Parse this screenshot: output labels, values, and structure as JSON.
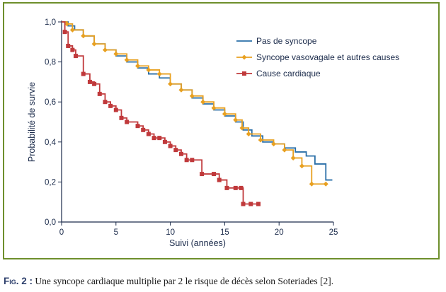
{
  "chart_data": {
    "type": "line",
    "step": true,
    "xlabel": "Suivi (années)",
    "ylabel": "Probabilité de survie",
    "xlim": [
      0,
      25
    ],
    "ylim": [
      0,
      1.0
    ],
    "x_ticks": [
      "0",
      "5",
      "10",
      "15",
      "20",
      "25"
    ],
    "y_ticks": [
      "0,0",
      "0,2",
      "0,4",
      "0,6",
      "0,8",
      "1,0"
    ],
    "grid": false,
    "legend_position": "top-right",
    "series": [
      {
        "name": "Pas de syncope",
        "color": "#2a6fa8",
        "marker": "none",
        "points": [
          [
            0,
            1.0
          ],
          [
            0.6,
            0.98
          ],
          [
            1.2,
            0.96
          ],
          [
            2,
            0.93
          ],
          [
            3,
            0.89
          ],
          [
            4,
            0.86
          ],
          [
            5,
            0.83
          ],
          [
            6,
            0.8
          ],
          [
            7,
            0.77
          ],
          [
            8,
            0.74
          ],
          [
            9,
            0.72
          ],
          [
            10,
            0.69
          ],
          [
            11,
            0.66
          ],
          [
            12,
            0.62
          ],
          [
            13,
            0.59
          ],
          [
            14,
            0.56
          ],
          [
            15,
            0.53
          ],
          [
            16,
            0.5
          ],
          [
            16.7,
            0.46
          ],
          [
            17.5,
            0.43
          ],
          [
            18.5,
            0.4
          ],
          [
            19.5,
            0.39
          ],
          [
            20.5,
            0.37
          ],
          [
            21.5,
            0.35
          ],
          [
            22.5,
            0.33
          ],
          [
            23.3,
            0.29
          ],
          [
            24.3,
            0.21
          ],
          [
            24.9,
            0.21
          ]
        ]
      },
      {
        "name": "Syncope vasovagale et autres causes",
        "color": "#e8a020",
        "marker": "diamond",
        "points": [
          [
            0,
            1.0
          ],
          [
            0.5,
            0.99
          ],
          [
            1,
            0.96
          ],
          [
            2,
            0.93
          ],
          [
            3,
            0.89
          ],
          [
            4,
            0.86
          ],
          [
            5,
            0.84
          ],
          [
            6,
            0.81
          ],
          [
            7,
            0.78
          ],
          [
            8,
            0.76
          ],
          [
            9,
            0.74
          ],
          [
            10,
            0.69
          ],
          [
            11,
            0.66
          ],
          [
            12,
            0.63
          ],
          [
            13,
            0.6
          ],
          [
            14,
            0.57
          ],
          [
            15,
            0.54
          ],
          [
            16,
            0.51
          ],
          [
            16.6,
            0.47
          ],
          [
            17.2,
            0.44
          ],
          [
            18.3,
            0.41
          ],
          [
            19.5,
            0.39
          ],
          [
            20.5,
            0.36
          ],
          [
            21.3,
            0.32
          ],
          [
            22.1,
            0.28
          ],
          [
            23,
            0.19
          ],
          [
            24.3,
            0.19
          ]
        ]
      },
      {
        "name": "Cause cardiaque",
        "color": "#c0393b",
        "marker": "square",
        "points": [
          [
            0,
            1.0
          ],
          [
            0.3,
            0.95
          ],
          [
            0.6,
            0.88
          ],
          [
            1,
            0.86
          ],
          [
            1.3,
            0.83
          ],
          [
            2,
            0.74
          ],
          [
            2.6,
            0.7
          ],
          [
            3,
            0.69
          ],
          [
            3.5,
            0.64
          ],
          [
            4,
            0.6
          ],
          [
            4.5,
            0.58
          ],
          [
            5,
            0.56
          ],
          [
            5.5,
            0.52
          ],
          [
            6,
            0.5
          ],
          [
            7,
            0.48
          ],
          [
            7.5,
            0.46
          ],
          [
            8,
            0.44
          ],
          [
            8.5,
            0.42
          ],
          [
            9,
            0.42
          ],
          [
            9.5,
            0.4
          ],
          [
            10,
            0.38
          ],
          [
            10.5,
            0.36
          ],
          [
            11,
            0.34
          ],
          [
            11.5,
            0.31
          ],
          [
            12,
            0.31
          ],
          [
            12.9,
            0.24
          ],
          [
            14,
            0.24
          ],
          [
            14.5,
            0.21
          ],
          [
            15.2,
            0.17
          ],
          [
            16,
            0.17
          ],
          [
            16.5,
            0.17
          ],
          [
            16.7,
            0.09
          ],
          [
            17.4,
            0.09
          ],
          [
            18.1,
            0.09
          ]
        ]
      }
    ]
  },
  "caption": {
    "prefix": "Fig. 2 :",
    "text": " Une syncope cardiaque multiplie par 2 le risque de décès selon Soteriades [2]."
  }
}
